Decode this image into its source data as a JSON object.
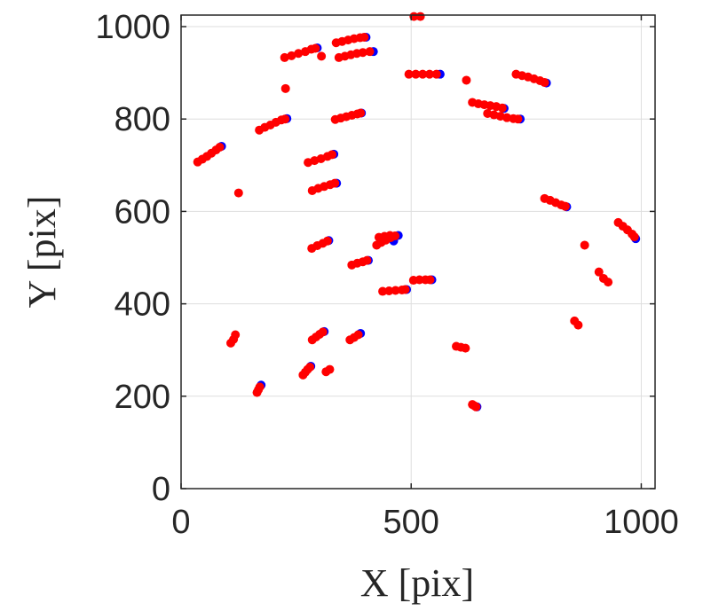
{
  "chart_data": {
    "type": "scatter",
    "xlabel": "X [pix]",
    "ylabel": "Y [pix]",
    "xlim": [
      0,
      1030
    ],
    "ylim": [
      0,
      1025
    ],
    "x_ticks": [
      0,
      500,
      1000
    ],
    "y_ticks": [
      0,
      200,
      400,
      600,
      800,
      1000
    ],
    "x_tick_labels": [
      "0",
      "500",
      "1000"
    ],
    "y_tick_labels": [
      "0",
      "200",
      "400",
      "600",
      "800",
      "1000"
    ],
    "grid": true,
    "box": true,
    "series": [
      {
        "color": "#0000ff",
        "points": [
          [
            88,
            741
          ],
          [
            230,
            801
          ],
          [
            296,
            954
          ],
          [
            332,
            724
          ],
          [
            338,
            661
          ],
          [
            392,
            813
          ],
          [
            402,
            977
          ],
          [
            418,
            946
          ],
          [
            563,
            897
          ],
          [
            702,
            823
          ],
          [
            737,
            800
          ],
          [
            794,
            878
          ],
          [
            838,
            610
          ],
          [
            988,
            541
          ],
          [
            321,
            537
          ],
          [
            407,
            494
          ],
          [
            472,
            548
          ],
          [
            462,
            536
          ],
          [
            490,
            431
          ],
          [
            545,
            452
          ],
          [
            311,
            340
          ],
          [
            390,
            336
          ],
          [
            174,
            224
          ],
          [
            282,
            265
          ],
          [
            643,
            177
          ]
        ]
      },
      {
        "color": "#ff0000",
        "points": [
          [
            36,
            707
          ],
          [
            46,
            713
          ],
          [
            56,
            719
          ],
          [
            66,
            726
          ],
          [
            76,
            733
          ],
          [
            84,
            739
          ],
          [
            227,
            866
          ],
          [
            125,
            640
          ],
          [
            170,
            776
          ],
          [
            182,
            782
          ],
          [
            194,
            787
          ],
          [
            206,
            793
          ],
          [
            218,
            798
          ],
          [
            226,
            800
          ],
          [
            225,
            933
          ],
          [
            240,
            937
          ],
          [
            255,
            942
          ],
          [
            270,
            946
          ],
          [
            283,
            951
          ],
          [
            292,
            953
          ],
          [
            305,
            936
          ],
          [
            276,
            706
          ],
          [
            290,
            710
          ],
          [
            304,
            714
          ],
          [
            318,
            719
          ],
          [
            328,
            723
          ],
          [
            285,
            645
          ],
          [
            298,
            650
          ],
          [
            311,
            654
          ],
          [
            324,
            658
          ],
          [
            334,
            661
          ],
          [
            337,
            965
          ],
          [
            350,
            968
          ],
          [
            363,
            971
          ],
          [
            376,
            974
          ],
          [
            389,
            976
          ],
          [
            398,
            977
          ],
          [
            343,
            933
          ],
          [
            356,
            936
          ],
          [
            369,
            939
          ],
          [
            382,
            942
          ],
          [
            395,
            944
          ],
          [
            410,
            946
          ],
          [
            335,
            799
          ],
          [
            347,
            802
          ],
          [
            359,
            805
          ],
          [
            371,
            808
          ],
          [
            383,
            811
          ],
          [
            390,
            813
          ],
          [
            506,
            1022
          ],
          [
            520,
            1022
          ],
          [
            495,
            897
          ],
          [
            510,
            897
          ],
          [
            525,
            897
          ],
          [
            540,
            897
          ],
          [
            555,
            897
          ],
          [
            620,
            884
          ],
          [
            633,
            836
          ],
          [
            646,
            833
          ],
          [
            659,
            831
          ],
          [
            672,
            829
          ],
          [
            685,
            827
          ],
          [
            698,
            824
          ],
          [
            666,
            812
          ],
          [
            680,
            809
          ],
          [
            694,
            806
          ],
          [
            708,
            803
          ],
          [
            722,
            801
          ],
          [
            732,
            800
          ],
          [
            728,
            897
          ],
          [
            741,
            894
          ],
          [
            754,
            891
          ],
          [
            767,
            887
          ],
          [
            780,
            883
          ],
          [
            790,
            879
          ],
          [
            790,
            628
          ],
          [
            802,
            624
          ],
          [
            814,
            619
          ],
          [
            826,
            614
          ],
          [
            835,
            611
          ],
          [
            950,
            576
          ],
          [
            960,
            568
          ],
          [
            970,
            560
          ],
          [
            980,
            551
          ],
          [
            985,
            545
          ],
          [
            877,
            527
          ],
          [
            908,
            469
          ],
          [
            918,
            455
          ],
          [
            928,
            447
          ],
          [
            284,
            520
          ],
          [
            296,
            526
          ],
          [
            308,
            531
          ],
          [
            318,
            536
          ],
          [
            371,
            484
          ],
          [
            383,
            488
          ],
          [
            395,
            491
          ],
          [
            404,
            494
          ],
          [
            425,
            527
          ],
          [
            435,
            533
          ],
          [
            445,
            538
          ],
          [
            455,
            543
          ],
          [
            465,
            547
          ],
          [
            430,
            544
          ],
          [
            442,
            546
          ],
          [
            454,
            548
          ],
          [
            438,
            427
          ],
          [
            452,
            428
          ],
          [
            466,
            429
          ],
          [
            480,
            430
          ],
          [
            487,
            431
          ],
          [
            505,
            451
          ],
          [
            518,
            452
          ],
          [
            531,
            452
          ],
          [
            541,
            452
          ],
          [
            108,
            315
          ],
          [
            114,
            323
          ],
          [
            118,
            333
          ],
          [
            285,
            322
          ],
          [
            293,
            328
          ],
          [
            301,
            334
          ],
          [
            308,
            339
          ],
          [
            367,
            322
          ],
          [
            376,
            327
          ],
          [
            385,
            333
          ],
          [
            165,
            208
          ],
          [
            168,
            214
          ],
          [
            171,
            220
          ],
          [
            265,
            246
          ],
          [
            270,
            252
          ],
          [
            275,
            258
          ],
          [
            280,
            263
          ],
          [
            315,
            253
          ],
          [
            323,
            258
          ],
          [
            598,
            308
          ],
          [
            608,
            306
          ],
          [
            618,
            304
          ],
          [
            633,
            182
          ],
          [
            638,
            179
          ],
          [
            641,
            177
          ],
          [
            855,
            363
          ],
          [
            863,
            354
          ]
        ]
      }
    ]
  }
}
